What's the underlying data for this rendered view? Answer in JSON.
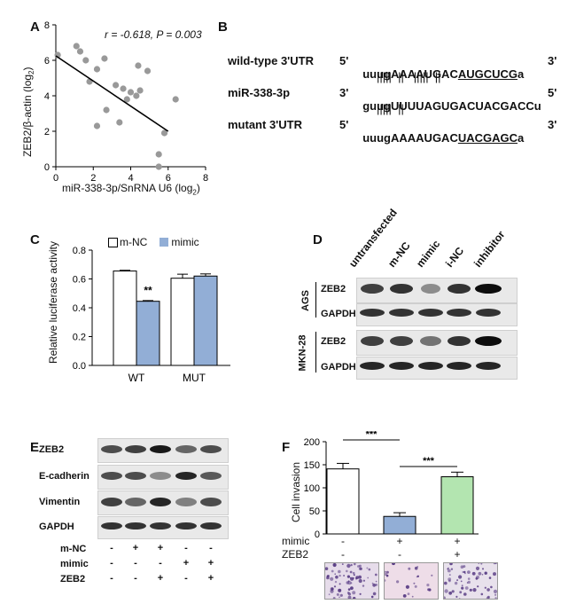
{
  "panel_labels": [
    "A",
    "B",
    "C",
    "D",
    "E",
    "F"
  ],
  "panelA": {
    "stat": "r = -0.618, P = 0.003",
    "ylabel_pre": "ZEB2/β-actin (log",
    "ylabel_sub": "2",
    "ylabel_post": ")",
    "xlabel_pre": "miR-338-3p/SnRNA U6 (log",
    "xlabel_sub": "2",
    "xlabel_post": ")"
  },
  "panelB": {
    "rows": [
      {
        "label": "wild-type 3'UTR",
        "five": "5'",
        "seq": "uuugAAAAUGAC",
        "seq_ul": "AUGCUCG",
        "seq_tail": "a",
        "three": "3'"
      },
      {
        "label": "miR-338-3p",
        "five": "3'",
        "seq": "guugUUUUAGUGACUACGACCu",
        "seq_ul": "",
        "seq_tail": "",
        "three": "5'"
      },
      {
        "label": "mutant 3'UTR",
        "five": "5'",
        "seq": "uuugAAAAUGAC",
        "seq_ul": "UACGAGC",
        "seq_tail": "a",
        "three": "3'"
      }
    ],
    "pairs_top": "|||||  ||   |||||  ||",
    "pairs_bottom": "|||||  ||"
  },
  "panelC": {
    "ylabel": "Relative luciferase activity",
    "legend": [
      "m-NC",
      "mimic"
    ],
    "groups": [
      "WT",
      "MUT"
    ],
    "sig": "**"
  },
  "panelD": {
    "lanes": [
      "untransfected",
      "m-NC",
      "mimic",
      "i-NC",
      "inhibitor"
    ],
    "cell_lines": [
      "AGS",
      "MKN-28"
    ],
    "rows": [
      "ZEB2",
      "GAPDH",
      "ZEB2",
      "GAPDH"
    ]
  },
  "panelE": {
    "rows": [
      "ZEB2",
      "E-cadherin",
      "Vimentin",
      "GAPDH"
    ],
    "conditions": [
      {
        "label": "m-NC",
        "signs": [
          "-",
          "+",
          "+",
          "-",
          "-"
        ]
      },
      {
        "label": "mimic",
        "signs": [
          "-",
          "-",
          "-",
          "+",
          "+"
        ]
      },
      {
        "label": "ZEB2",
        "signs": [
          "-",
          "-",
          "+",
          "-",
          "+"
        ]
      }
    ]
  },
  "panelF": {
    "ylabel": "Cell invasion",
    "sig": [
      "***",
      "***"
    ],
    "conditions": [
      {
        "label": "mimic",
        "signs": [
          "-",
          "+",
          "+"
        ]
      },
      {
        "label": "ZEB2",
        "signs": [
          "-",
          "-",
          "+"
        ]
      }
    ]
  },
  "chart_data": [
    {
      "type": "scatter",
      "panel": "A",
      "x": [
        0.1,
        1.1,
        1.3,
        1.8,
        2.2,
        2.6,
        2.7,
        3.2,
        3.6,
        3.8,
        4.0,
        4.3,
        4.4,
        4.5,
        4.9,
        2.2,
        3.4,
        5.5,
        5.5,
        5.8,
        6.4,
        1.6
      ],
      "y": [
        6.3,
        6.8,
        6.5,
        4.8,
        5.5,
        6.1,
        3.2,
        4.6,
        4.4,
        3.8,
        4.2,
        4.0,
        5.7,
        4.3,
        5.4,
        2.3,
        2.5,
        0.7,
        0.0,
        1.9,
        3.8,
        6.0
      ],
      "fit_line": {
        "x": [
          0,
          6
        ],
        "y": [
          6.25,
          2.0
        ]
      },
      "xlabel": "miR-338-3p/SnRNA U6 (log2)",
      "ylabel": "ZEB2/β-actin (log2)",
      "xlim": [
        0,
        8
      ],
      "ylim": [
        0,
        8
      ],
      "xticks": [
        0,
        2,
        4,
        6,
        8
      ],
      "yticks": [
        0,
        2,
        4,
        6,
        8
      ],
      "color": "#999999"
    },
    {
      "type": "bar",
      "panel": "C",
      "categories": [
        "WT",
        "MUT"
      ],
      "series": [
        {
          "name": "m-NC",
          "values": [
            0.655,
            0.605
          ],
          "errors": [
            0.005,
            0.028
          ],
          "color": "#ffffff"
        },
        {
          "name": "mimic",
          "values": [
            0.445,
            0.62
          ],
          "errors": [
            0.005,
            0.015
          ],
          "color": "#92aed6"
        }
      ],
      "ylabel": "Relative luciferase activity",
      "ylim": [
        0,
        0.8
      ],
      "yticks": [
        0.0,
        0.2,
        0.4,
        0.6,
        0.8
      ],
      "legend": "top"
    },
    {
      "type": "bar",
      "panel": "F",
      "categories": [
        "1",
        "2",
        "3"
      ],
      "values": [
        141,
        38,
        124
      ],
      "errors": [
        12,
        8,
        10
      ],
      "colors": [
        "#ffffff",
        "#92aed6",
        "#b3e5b0"
      ],
      "ylabel": "Cell invasion",
      "ylim": [
        0,
        200
      ],
      "yticks": [
        0,
        50,
        100,
        150,
        200
      ]
    }
  ]
}
